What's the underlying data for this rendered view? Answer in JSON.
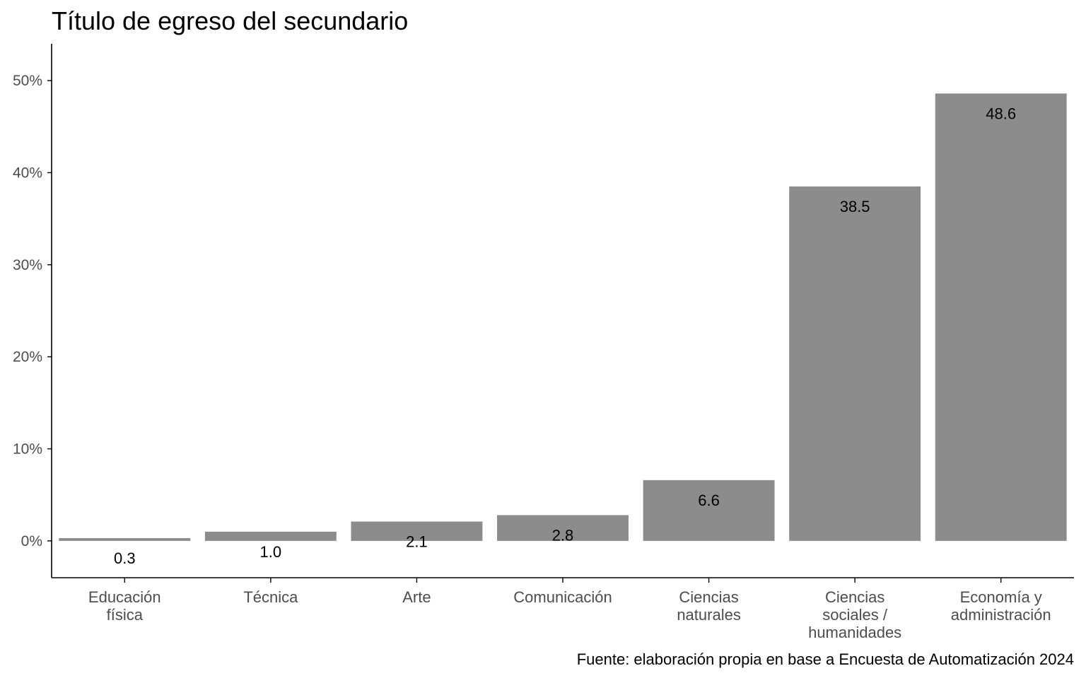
{
  "chart_data": {
    "type": "bar",
    "title": "Título de egreso del secundario",
    "caption": "Fuente: elaboración propia en base a Encuesta de Automatización 2024",
    "xlabel": "",
    "ylabel": "",
    "categories": [
      [
        "Educación",
        "física"
      ],
      [
        "Técnica"
      ],
      [
        "Arte"
      ],
      [
        "Comunicación"
      ],
      [
        "Ciencias",
        "naturales"
      ],
      [
        "Ciencias",
        "sociales /",
        "humanidades"
      ],
      [
        "Economía y",
        "administración"
      ]
    ],
    "values": [
      0.3,
      1.0,
      2.1,
      2.8,
      6.6,
      38.5,
      48.6
    ],
    "value_labels": [
      "0.3",
      "1.0",
      "2.1",
      "2.8",
      "6.6",
      "38.5",
      "48.6"
    ],
    "yticks": [
      0,
      10,
      20,
      30,
      40,
      50
    ],
    "ytick_labels": [
      "0%",
      "10%",
      "20%",
      "30%",
      "40%",
      "50%"
    ],
    "ylim": [
      -4,
      54
    ],
    "grid": false,
    "legend": "none",
    "colors": {
      "bar": "#8c8c8c",
      "axis": "#000000",
      "tick_text": "#4d4d4d",
      "label_text": "#000000"
    }
  }
}
